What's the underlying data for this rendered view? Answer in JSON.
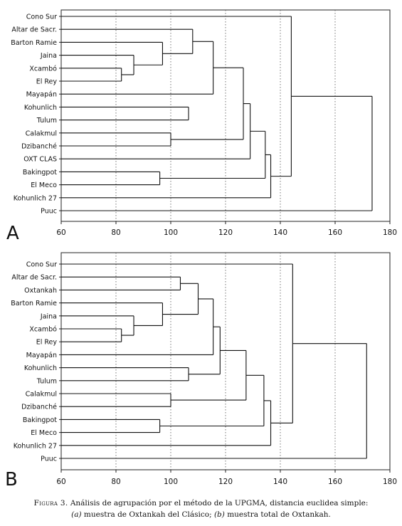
{
  "chart_data": [
    {
      "type": "dendrogram",
      "panel_label": "A",
      "x_ticks": [
        60,
        80,
        100,
        120,
        140,
        160,
        180
      ],
      "xlim": [
        60,
        180
      ],
      "grid": "vertical dotted",
      "leaves": [
        "Cono Sur",
        "Altar de Sacr.",
        "Barton Ramie",
        "Jaina",
        "Xcambó",
        "El Rey",
        "Mayapán",
        "Kohunlich",
        "Tulum",
        "Calakmul",
        "Dzibanché",
        "OXT CLAS",
        "Bakingpot",
        "El Meco",
        "Kohunlich 27",
        "Puuc"
      ],
      "merges": [
        {
          "a": "Xcambó",
          "b": "El Rey",
          "height": 82
        },
        {
          "a": "Jaina",
          "b": "Xcambó+El Rey",
          "height": 86.5
        },
        {
          "a": "Barton Ramie",
          "b": "Jaina+Xcambó+El Rey",
          "height": 97
        },
        {
          "a": "Altar de Sacr.",
          "b": "Barton Ramie group",
          "height": 108
        },
        {
          "a": "Altar de Sacr. group",
          "b": "Mayapán",
          "height": 115.5
        },
        {
          "a": "Kohunlich",
          "b": "Tulum",
          "height": 106.5
        },
        {
          "a": "Altar/Mayapán group",
          "b": "Kohunlich+Tulum",
          "height": 117.5
        },
        {
          "a": "Calakmul",
          "b": "Dzibanché",
          "height": 100
        },
        {
          "a": "Bakingpot",
          "b": "El Meco",
          "height": 96
        },
        {
          "a": "Altar..Tulum",
          "b": "Calakmul+Dzibanché",
          "height": 126.5
        },
        {
          "a": "Altar..Dzibanché",
          "b": "OXT CLAS",
          "height": 129
        },
        {
          "a": "Altar..OXT CLAS",
          "b": "Bakingpot+El Meco",
          "height": 134.5
        },
        {
          "a": "Altar..El Meco",
          "b": "Kohunlich 27",
          "height": 136.5
        },
        {
          "a": "Cono Sur",
          "b": "Altar..Kohunlich 27",
          "height": 144
        },
        {
          "a": "Cono Sur..Kohunlich 27",
          "b": "Puuc",
          "height": 173.5
        }
      ]
    },
    {
      "type": "dendrogram",
      "panel_label": "B",
      "x_ticks": [
        60,
        80,
        100,
        120,
        140,
        160,
        180
      ],
      "xlim": [
        60,
        180
      ],
      "grid": "vertical dotted",
      "leaves": [
        "Cono Sur",
        "Altar de Sacr.",
        "Oxtankah",
        "Barton Ramie",
        "Jaina",
        "Xcambó",
        "El Rey",
        "Mayapán",
        "Kohunlich",
        "Tulum",
        "Calakmul",
        "Dzibanché",
        "Bakingpot",
        "El Meco",
        "Kohunlich 27",
        "Puuc"
      ],
      "merges": [
        {
          "a": "Xcambó",
          "b": "El Rey",
          "height": 82
        },
        {
          "a": "Jaina",
          "b": "Xcambó+El Rey",
          "height": 86.5
        },
        {
          "a": "Barton Ramie",
          "b": "Jaina+Xcambó+El Rey",
          "height": 97
        },
        {
          "a": "Altar de Sacr.",
          "b": "Oxtankah",
          "height": 103.5
        },
        {
          "a": "Altar+Oxtankah",
          "b": "Barton Ramie group",
          "height": 110
        },
        {
          "a": "Altar..El Rey",
          "b": "Mayapán",
          "height": 115.5
        },
        {
          "a": "Kohunlich",
          "b": "Tulum",
          "height": 106.5
        },
        {
          "a": "Altar..Mayapán",
          "b": "Kohunlich+Tulum",
          "height": 118
        },
        {
          "a": "Calakmul",
          "b": "Dzibanché",
          "height": 100
        },
        {
          "a": "Altar..Tulum",
          "b": "Calakmul+Dzibanché",
          "height": 127.5
        },
        {
          "a": "Bakingpot",
          "b": "El Meco",
          "height": 96
        },
        {
          "a": "Altar..Dzibanché",
          "b": "Bakingpot+El Meco",
          "height": 134
        },
        {
          "a": "Altar..El Meco",
          "b": "Kohunlich 27",
          "height": 136.5
        },
        {
          "a": "Cono Sur",
          "b": "Altar..Kohunlich 27",
          "height": 144.5
        },
        {
          "a": "Cono Sur..Kohunlich 27",
          "b": "Puuc",
          "height": 171.5
        }
      ]
    }
  ],
  "caption": {
    "figure_label": "Figura 3.",
    "text_1": " Análisis de agrupación por el método de la UPGMA, distancia euclidea simple:",
    "part_a_label": "(a)",
    "part_a_text": " muestra de Oxtankah del Clásico; ",
    "part_b_label": "(b)",
    "part_b_text": " muestra total de Oxtankah."
  }
}
